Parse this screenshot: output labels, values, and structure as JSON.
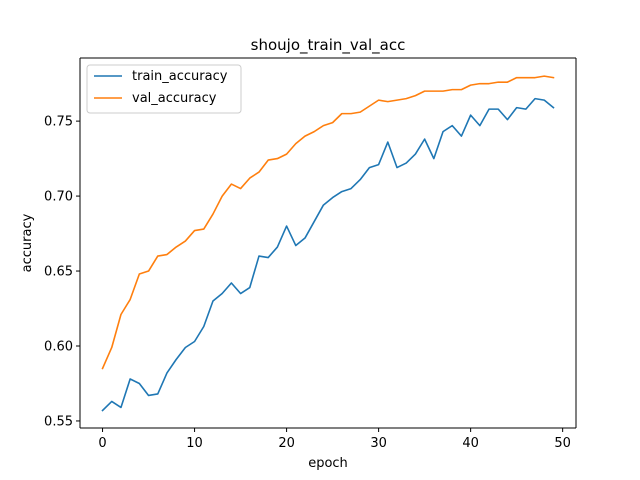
{
  "chart_data": {
    "type": "line",
    "title": "shoujo_train_val_acc",
    "xlabel": "epoch",
    "ylabel": "accuracy",
    "xlim": [
      -2.45,
      51.45
    ],
    "ylim": [
      0.5453,
      0.7921
    ],
    "xticks": [
      0,
      10,
      20,
      30,
      40,
      50
    ],
    "yticks": [
      0.55,
      0.6,
      0.65,
      0.7,
      0.75
    ],
    "ytick_labels": [
      "0.55",
      "0.60",
      "0.65",
      "0.70",
      "0.75"
    ],
    "grid": false,
    "legend_position": "upper left",
    "x": [
      0,
      1,
      2,
      3,
      4,
      5,
      6,
      7,
      8,
      9,
      10,
      11,
      12,
      13,
      14,
      15,
      16,
      17,
      18,
      19,
      20,
      21,
      22,
      23,
      24,
      25,
      26,
      27,
      28,
      29,
      30,
      31,
      32,
      33,
      34,
      35,
      36,
      37,
      38,
      39,
      40,
      41,
      42,
      43,
      44,
      45,
      46,
      47,
      48,
      49
    ],
    "series": [
      {
        "name": "train_accuracy",
        "color": "#1f77b4",
        "values": [
          0.557,
          0.563,
          0.559,
          0.578,
          0.575,
          0.567,
          0.568,
          0.582,
          0.591,
          0.599,
          0.603,
          0.613,
          0.63,
          0.635,
          0.642,
          0.635,
          0.639,
          0.66,
          0.659,
          0.666,
          0.68,
          0.667,
          0.672,
          0.683,
          0.694,
          0.699,
          0.703,
          0.705,
          0.711,
          0.719,
          0.721,
          0.736,
          0.719,
          0.722,
          0.728,
          0.738,
          0.725,
          0.743,
          0.747,
          0.74,
          0.754,
          0.747,
          0.758,
          0.758,
          0.751,
          0.759,
          0.758,
          0.765,
          0.764,
          0.759
        ]
      },
      {
        "name": "val_accuracy",
        "color": "#ff7f0e",
        "values": [
          0.585,
          0.599,
          0.621,
          0.631,
          0.648,
          0.65,
          0.66,
          0.661,
          0.666,
          0.67,
          0.677,
          0.678,
          0.688,
          0.7,
          0.708,
          0.705,
          0.712,
          0.716,
          0.724,
          0.725,
          0.728,
          0.735,
          0.74,
          0.743,
          0.747,
          0.749,
          0.755,
          0.755,
          0.756,
          0.76,
          0.764,
          0.763,
          0.764,
          0.765,
          0.767,
          0.77,
          0.77,
          0.77,
          0.771,
          0.771,
          0.774,
          0.775,
          0.775,
          0.776,
          0.776,
          0.779,
          0.779,
          0.779,
          0.78,
          0.779
        ]
      }
    ]
  }
}
